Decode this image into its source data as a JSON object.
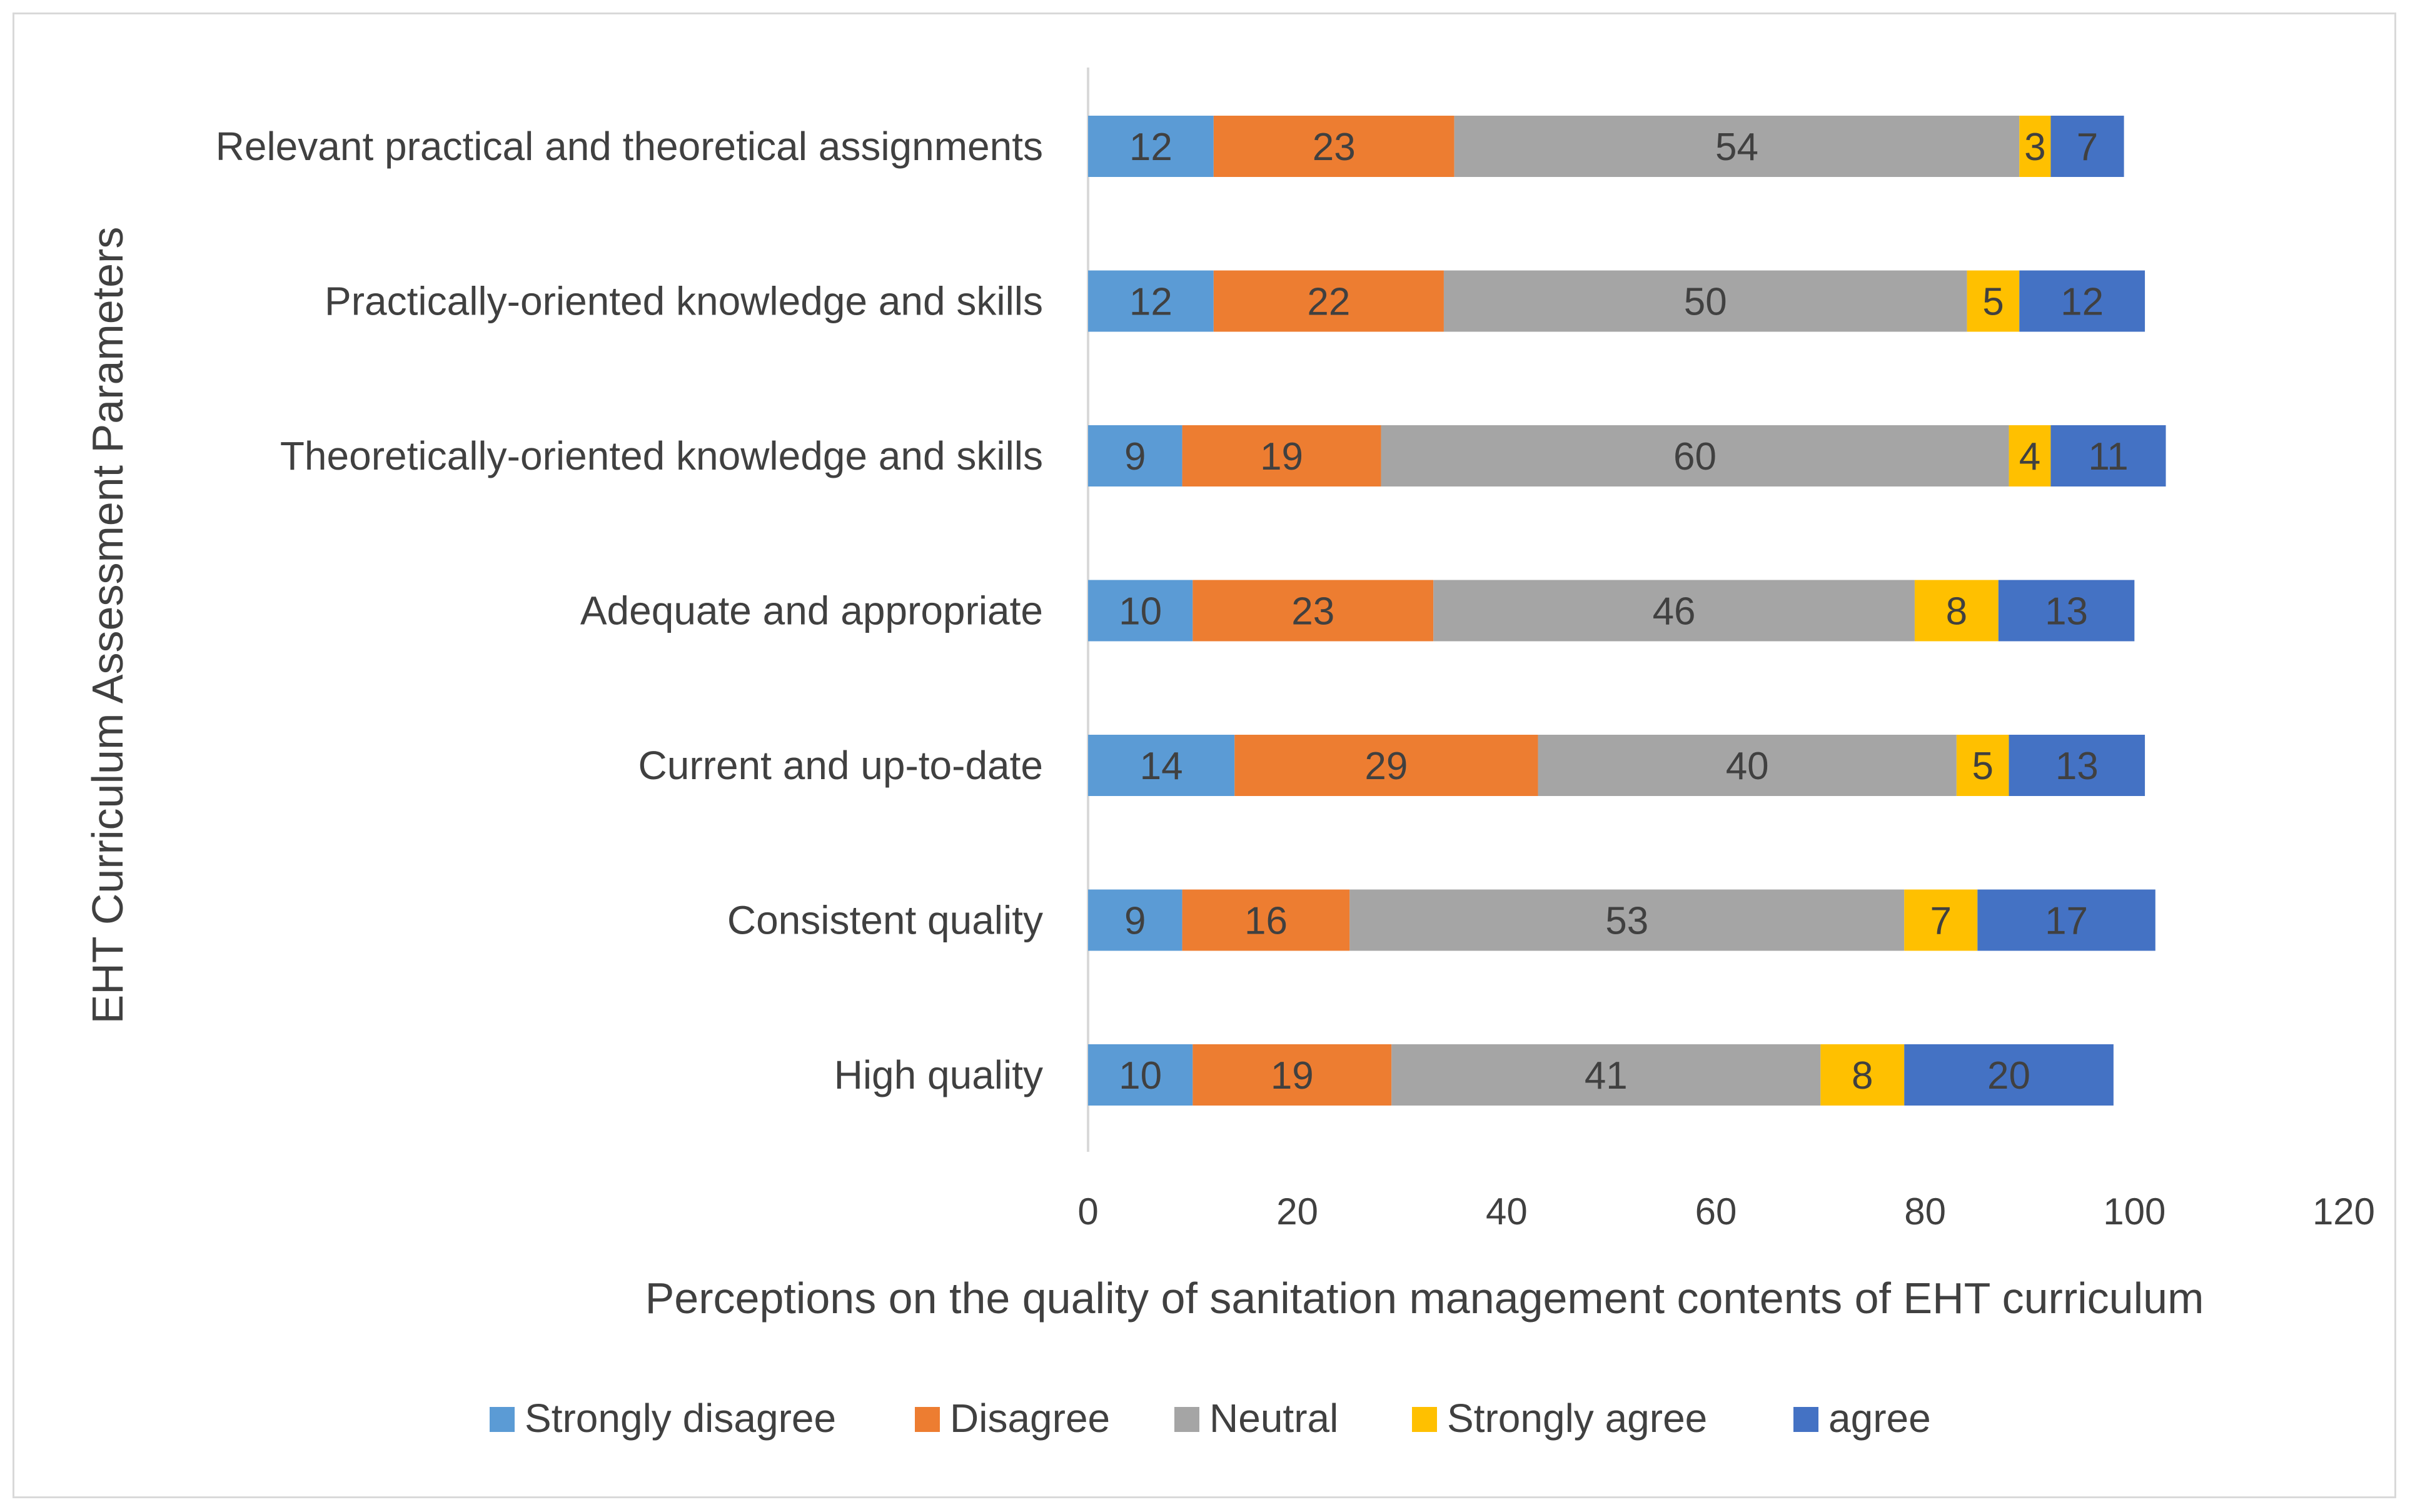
{
  "chart_data": {
    "type": "bar",
    "orientation": "horizontal",
    "stacked": true,
    "title": "",
    "xlabel": "Perceptions on the quality of sanitation management contents of EHT curriculum",
    "ylabel": "EHT Curriculum Assessment Parameters",
    "xlim": [
      0,
      120
    ],
    "xticks": [
      0,
      20,
      40,
      60,
      80,
      100,
      120
    ],
    "grid": false,
    "legend_position": "bottom",
    "categories": [
      "Relevant practical and theoretical assignments",
      "Practically-oriented knowledge and skills",
      "Theoretically-oriented knowledge and skills",
      "Adequate and appropriate",
      "Current and up-to-date",
      "Consistent quality",
      "High quality"
    ],
    "series": [
      {
        "name": "Strongly disagree",
        "color": "#5B9BD5",
        "values": [
          12,
          12,
          9,
          10,
          14,
          9,
          10
        ]
      },
      {
        "name": "Disagree",
        "color": "#ED7D31",
        "values": [
          23,
          22,
          19,
          23,
          29,
          16,
          19
        ]
      },
      {
        "name": "Neutral",
        "color": "#A5A5A5",
        "values": [
          54,
          50,
          60,
          46,
          40,
          53,
          41
        ]
      },
      {
        "name": "Strongly agree",
        "color": "#FFC000",
        "values": [
          3,
          5,
          4,
          8,
          5,
          7,
          8
        ]
      },
      {
        "name": "agree",
        "color": "#4472C4",
        "values": [
          7,
          12,
          11,
          13,
          13,
          17,
          20
        ]
      }
    ]
  }
}
